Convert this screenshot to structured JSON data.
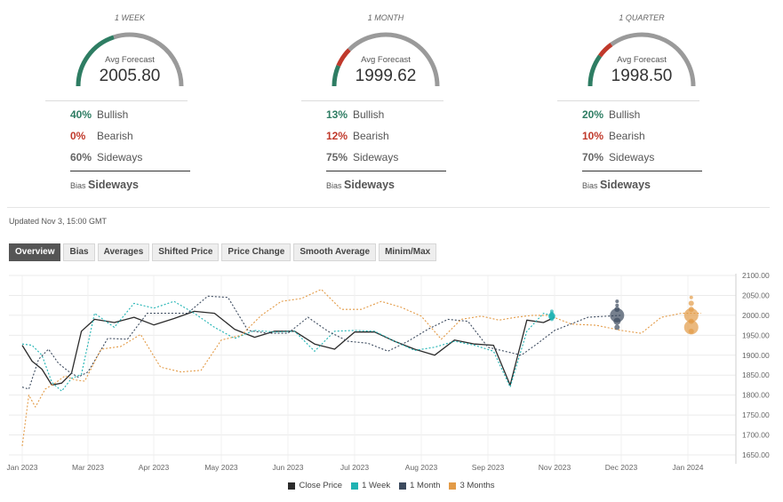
{
  "gauges": [
    {
      "period": "1 WEEK",
      "avg_label": "Avg Forecast",
      "avg_value": "2005.80",
      "bullish_pct": "40%",
      "bullish_label": "Bullish",
      "bearish_pct": "0%",
      "bearish_label": "Bearish",
      "sideways_pct": "60%",
      "sideways_label": "Sideways",
      "bias_label": "Bias",
      "bias_value": "Sideways"
    },
    {
      "period": "1 MONTH",
      "avg_label": "Avg Forecast",
      "avg_value": "1999.62",
      "bullish_pct": "13%",
      "bullish_label": "Bullish",
      "bearish_pct": "12%",
      "bearish_label": "Bearish",
      "sideways_pct": "75%",
      "sideways_label": "Sideways",
      "bias_label": "Bias",
      "bias_value": "Sideways"
    },
    {
      "period": "1 QUARTER",
      "avg_label": "Avg Forecast",
      "avg_value": "1998.50",
      "bullish_pct": "20%",
      "bullish_label": "Bullish",
      "bearish_pct": "10%",
      "bearish_label": "Bearish",
      "sideways_pct": "70%",
      "sideways_label": "Sideways",
      "bias_label": "Bias",
      "bias_value": "Sideways"
    }
  ],
  "gauge_fractions": [
    {
      "bullish": 0.4,
      "bearish": 0.0,
      "sideways": 0.6
    },
    {
      "bullish": 0.13,
      "bearish": 0.12,
      "sideways": 0.75
    },
    {
      "bullish": 0.2,
      "bearish": 0.1,
      "sideways": 0.7
    }
  ],
  "colors": {
    "bullish": "#2e7d63",
    "bearish": "#c0392b",
    "sideways": "#9a9a9a"
  },
  "updated": "Updated Nov 3, 15:00 GMT",
  "tabs": [
    "Overview",
    "Bias",
    "Averages",
    "Shifted Price",
    "Price Change",
    "Smooth Average",
    "Minim/Max"
  ],
  "active_tab": "Overview",
  "chart_data": {
    "type": "line",
    "x_ticks": [
      "Jan 2023",
      "Mar 2023",
      "Apr 2023",
      "May 2023",
      "Jun 2023",
      "Jul 2023",
      "Aug 2023",
      "Sep 2023",
      "Nov 2023",
      "Dec 2023",
      "Jan 2024"
    ],
    "x_tick_positions": [
      0,
      2,
      3,
      4,
      5,
      6,
      7,
      8,
      9.2,
      10,
      11
    ],
    "y_ticks": [
      "1650.00",
      "1700.00",
      "1750.00",
      "1800.00",
      "1850.00",
      "1900.00",
      "1950.00",
      "2000.00",
      "2050.00",
      "2100.00"
    ],
    "ylim": [
      1650,
      2100
    ],
    "xlim": [
      0,
      11.8
    ],
    "grid": true,
    "legend_position": "bottom",
    "series": [
      {
        "name": "Close Price",
        "color": "#2b2b2b",
        "dash": false,
        "x": [
          0,
          0.3,
          0.6,
          0.9,
          1.2,
          1.5,
          1.8,
          2.1,
          2.4,
          2.7,
          3.0,
          3.3,
          3.6,
          3.9,
          4.2,
          4.5,
          4.8,
          5.1,
          5.4,
          5.7,
          6.0,
          6.3,
          6.6,
          6.9,
          7.2,
          7.5,
          7.8,
          8.1,
          8.4,
          8.7,
          9.0,
          9.2
        ],
        "y": [
          1925,
          1885,
          1865,
          1825,
          1830,
          1855,
          1960,
          1990,
          1982,
          1995,
          1976,
          1992,
          2010,
          2005,
          1965,
          1945,
          1960,
          1960,
          1928,
          1915,
          1958,
          1958,
          1935,
          1915,
          1900,
          1938,
          1928,
          1925,
          1825,
          1988,
          1982,
          1995
        ]
      },
      {
        "name": "1 Week",
        "color": "#1fb3b3",
        "dash": true,
        "x": [
          0,
          0.3,
          0.6,
          0.9,
          1.2,
          1.5,
          1.8,
          2.1,
          2.4,
          2.7,
          3.0,
          3.3,
          3.6,
          3.9,
          4.2,
          4.5,
          4.8,
          5.1,
          5.4,
          5.7,
          6.0,
          6.3,
          6.6,
          6.9,
          7.2,
          7.5,
          7.8,
          8.1,
          8.4,
          8.7,
          9.0,
          9.2
        ],
        "y": [
          1928,
          1925,
          1900,
          1832,
          1810,
          1842,
          1852,
          2005,
          1970,
          2030,
          2018,
          2035,
          2005,
          1970,
          1942,
          1962,
          1958,
          1960,
          1910,
          1960,
          1962,
          1960,
          1935,
          1912,
          1920,
          1935,
          1925,
          1910,
          1820,
          1960,
          2005,
          1998
        ]
      },
      {
        "name": "1 Month",
        "color": "#3c4a5e",
        "dash": true,
        "x": [
          0,
          0.2,
          0.5,
          0.8,
          1.1,
          1.4,
          1.7,
          2.0,
          2.3,
          2.6,
          2.9,
          3.2,
          3.5,
          3.8,
          4.1,
          4.4,
          4.7,
          5.0,
          5.3,
          5.6,
          5.9,
          6.2,
          6.5,
          6.8,
          7.1,
          7.4,
          7.7,
          8.0,
          8.3,
          8.6,
          8.9,
          9.2,
          9.6,
          10.0
        ],
        "y": [
          1820,
          1815,
          1890,
          1915,
          1880,
          1860,
          1845,
          1858,
          1942,
          1940,
          2005,
          2005,
          2005,
          2048,
          2045,
          1962,
          1955,
          1955,
          1995,
          1960,
          1935,
          1930,
          1910,
          1935,
          1965,
          1990,
          1985,
          1920,
          1910,
          1900,
          1930,
          1962,
          1995,
          2000
        ]
      },
      {
        "name": "3 Months",
        "color": "#e39b47",
        "dash": true,
        "x": [
          0,
          0.2,
          0.4,
          0.7,
          1.0,
          1.3,
          1.6,
          1.9,
          2.2,
          2.5,
          2.8,
          3.1,
          3.4,
          3.7,
          4.0,
          4.3,
          4.6,
          4.9,
          5.2,
          5.5,
          5.8,
          6.1,
          6.4,
          6.7,
          7.0,
          7.3,
          7.6,
          7.9,
          8.2,
          8.5,
          8.8,
          9.1,
          9.4,
          9.7,
          10.0,
          10.3,
          10.6,
          10.9,
          11.2
        ],
        "y": [
          1672,
          1800,
          1770,
          1815,
          1830,
          1848,
          1838,
          1835,
          1915,
          1922,
          1952,
          1870,
          1858,
          1862,
          1938,
          1950,
          2000,
          2035,
          2042,
          2065,
          2015,
          2015,
          2035,
          2020,
          1998,
          1940,
          1990,
          1998,
          1988,
          1995,
          2000,
          2000,
          1978,
          1975,
          1962,
          1955,
          1995,
          2005,
          2005
        ]
      }
    ],
    "forecast_markers": [
      {
        "series": "1 Week",
        "x": 9.15,
        "y": [
          2010,
          2005,
          2000,
          1998,
          1995,
          1990
        ],
        "sizes": [
          2,
          2,
          3,
          4,
          3,
          2
        ]
      },
      {
        "series": "1 Month",
        "x": 9.95,
        "y": [
          2035,
          2025,
          2015,
          2000,
          1985,
          1970
        ],
        "sizes": [
          2,
          2,
          3,
          8,
          4,
          3
        ]
      },
      {
        "series": "3 Months",
        "x": 11.05,
        "y": [
          2045,
          2030,
          2015,
          2000,
          1985,
          1970,
          1960
        ],
        "sizes": [
          2,
          3,
          3,
          8,
          3,
          8,
          3
        ]
      }
    ]
  },
  "legend": [
    {
      "label": "Close Price",
      "color": "#2b2b2b"
    },
    {
      "label": "1 Week",
      "color": "#1fb3b3"
    },
    {
      "label": "1 Month",
      "color": "#3c4a5e"
    },
    {
      "label": "3 Months",
      "color": "#e39b47"
    }
  ]
}
